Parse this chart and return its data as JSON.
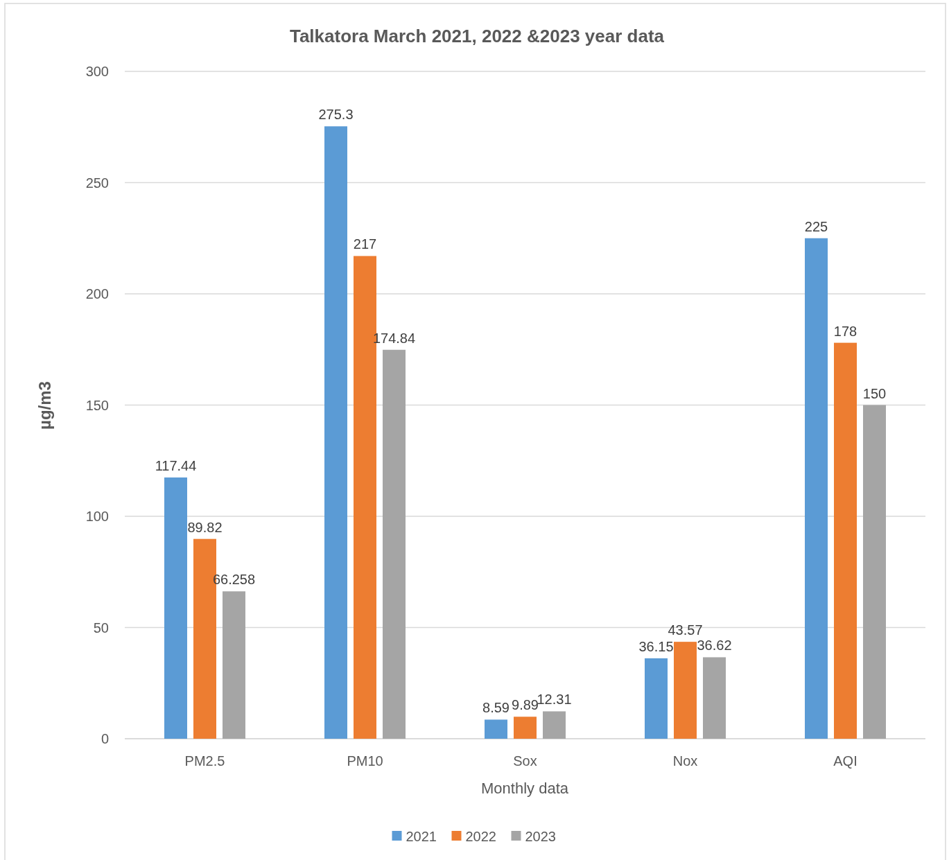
{
  "chart_data": {
    "type": "bar",
    "title": "Talkatora March 2021, 2022 &2023 year data",
    "xlabel": "Monthly data",
    "ylabel": "µg/m3",
    "categories": [
      "PM2.5",
      "PM10",
      "Sox",
      "Nox",
      "AQI"
    ],
    "series": [
      {
        "name": "2021",
        "color": "#5b9bd5",
        "values": [
          117.44,
          275.3,
          8.59,
          36.15,
          225
        ]
      },
      {
        "name": "2022",
        "color": "#ed7d31",
        "values": [
          89.82,
          217,
          9.89,
          43.57,
          178
        ]
      },
      {
        "name": "2023",
        "color": "#a5a5a5",
        "values": [
          66.258,
          174.84,
          12.31,
          36.62,
          150
        ]
      }
    ],
    "ylim": [
      0,
      300
    ],
    "yticks": [
      0,
      50,
      100,
      150,
      200,
      250,
      300
    ],
    "grid": "y",
    "legend": "bottom",
    "data_labels": true
  }
}
